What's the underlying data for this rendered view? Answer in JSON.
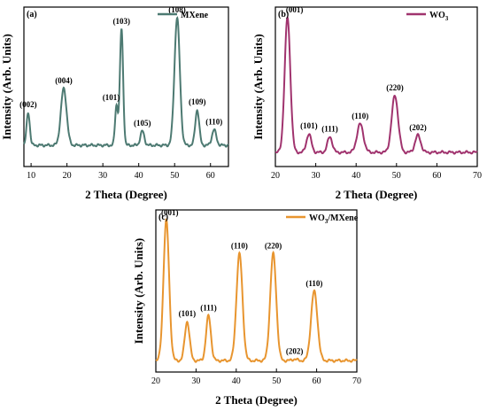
{
  "chart_data": [
    {
      "type": "line",
      "panel_label": "(a)",
      "xlabel": "2 Theta (Degree)",
      "ylabel": "Intensity (Arb. Units)",
      "xlim": [
        8,
        65
      ],
      "xticks": [
        10,
        20,
        30,
        40,
        50,
        60
      ],
      "legend": {
        "entries": [
          "MXene"
        ],
        "position": "top-right"
      },
      "series": [
        {
          "color": "#4d7a72",
          "baseline": 0.1,
          "peaks": [
            {
              "x": 9.2,
              "y": 0.33,
              "w": 0.45,
              "label": "(002)"
            },
            {
              "x": 19.1,
              "y": 0.5,
              "w": 0.8,
              "label": "(004)"
            },
            {
              "x": 33.8,
              "y": 0.38,
              "w": 0.4,
              "label": "(101)"
            },
            {
              "x": 35.2,
              "y": 0.92,
              "w": 0.45,
              "label": "(103)"
            },
            {
              "x": 41.0,
              "y": 0.2,
              "w": 0.55,
              "label": "(105)"
            },
            {
              "x": 50.7,
              "y": 1.0,
              "w": 0.75,
              "label": "(108)"
            },
            {
              "x": 56.3,
              "y": 0.35,
              "w": 0.55,
              "label": "(109)"
            },
            {
              "x": 61.0,
              "y": 0.21,
              "w": 0.6,
              "label": "(110)"
            }
          ]
        }
      ]
    },
    {
      "type": "line",
      "panel_label": "(b)",
      "xlabel": "2 Theta (Degree)",
      "ylabel": "Intensity (Arb. Units)",
      "xlim": [
        20,
        70
      ],
      "xticks": [
        20,
        30,
        40,
        50,
        60,
        70
      ],
      "legend": {
        "entries": [
          "WO3"
        ],
        "position": "top-right"
      },
      "series": [
        {
          "color": "#a0336e",
          "baseline": 0.05,
          "peaks": [
            {
              "x": 23.0,
              "y": 1.0,
              "w": 0.7,
              "label": "(001)"
            },
            {
              "x": 28.3,
              "y": 0.18,
              "w": 0.6,
              "label": "(101)"
            },
            {
              "x": 33.5,
              "y": 0.16,
              "w": 0.6,
              "label": "(111)"
            },
            {
              "x": 41.0,
              "y": 0.25,
              "w": 0.8,
              "label": "(110)"
            },
            {
              "x": 49.6,
              "y": 0.45,
              "w": 0.8,
              "label": "(220)"
            },
            {
              "x": 55.3,
              "y": 0.17,
              "w": 0.7,
              "label": "(202)"
            }
          ]
        }
      ]
    },
    {
      "type": "line",
      "panel_label": "(c)",
      "xlabel": "2 Theta (Degree)",
      "ylabel": "Intensity (Arb. Units)",
      "xlim": [
        20,
        70
      ],
      "xticks": [
        20,
        30,
        40,
        50,
        60,
        70
      ],
      "legend": {
        "entries": [
          "WO3/MXene"
        ],
        "position": "top-right"
      },
      "series": [
        {
          "color": "#e8952f",
          "baseline": 0.03,
          "peaks": [
            {
              "x": 22.6,
              "y": 1.0,
              "w": 0.7,
              "label": "(001)"
            },
            {
              "x": 27.8,
              "y": 0.3,
              "w": 0.6,
              "label": "(101)"
            },
            {
              "x": 33.1,
              "y": 0.34,
              "w": 0.6,
              "label": "(111)"
            },
            {
              "x": 40.8,
              "y": 0.77,
              "w": 0.75,
              "label": "(110)"
            },
            {
              "x": 49.2,
              "y": 0.77,
              "w": 0.75,
              "label": "(220)"
            },
            {
              "x": 54.5,
              "y": 0.04,
              "w": 0.6,
              "label": "(202)"
            },
            {
              "x": 59.4,
              "y": 0.51,
              "w": 0.8,
              "label": "(110)"
            }
          ]
        }
      ]
    }
  ]
}
